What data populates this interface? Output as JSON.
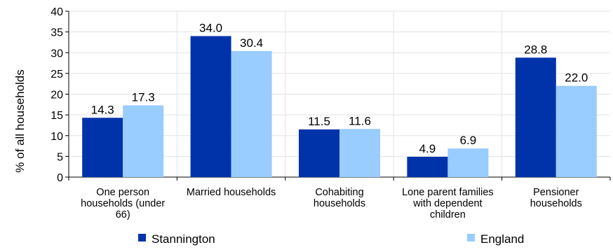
{
  "chart_data": {
    "type": "bar",
    "categories": [
      [
        "One person",
        "households (under",
        "66)"
      ],
      [
        "Married households"
      ],
      [
        "Cohabiting",
        "households"
      ],
      [
        "Lone parent families",
        "with dependent",
        "children"
      ],
      [
        "Pensioner",
        "households"
      ]
    ],
    "series": [
      {
        "name": "Stannington",
        "values": [
          14.3,
          34.0,
          11.5,
          4.9,
          28.8
        ],
        "color": "#0033aa"
      },
      {
        "name": "England",
        "values": [
          17.3,
          30.4,
          11.6,
          6.9,
          22.0
        ],
        "color": "#99ccff"
      }
    ],
    "ylabel": "% of all households",
    "ylim": [
      0,
      40
    ],
    "yticks": [
      "0",
      "5",
      "10",
      "15",
      "20",
      "25",
      "30",
      "35",
      "40"
    ],
    "grid": true,
    "legend": "bottom"
  }
}
